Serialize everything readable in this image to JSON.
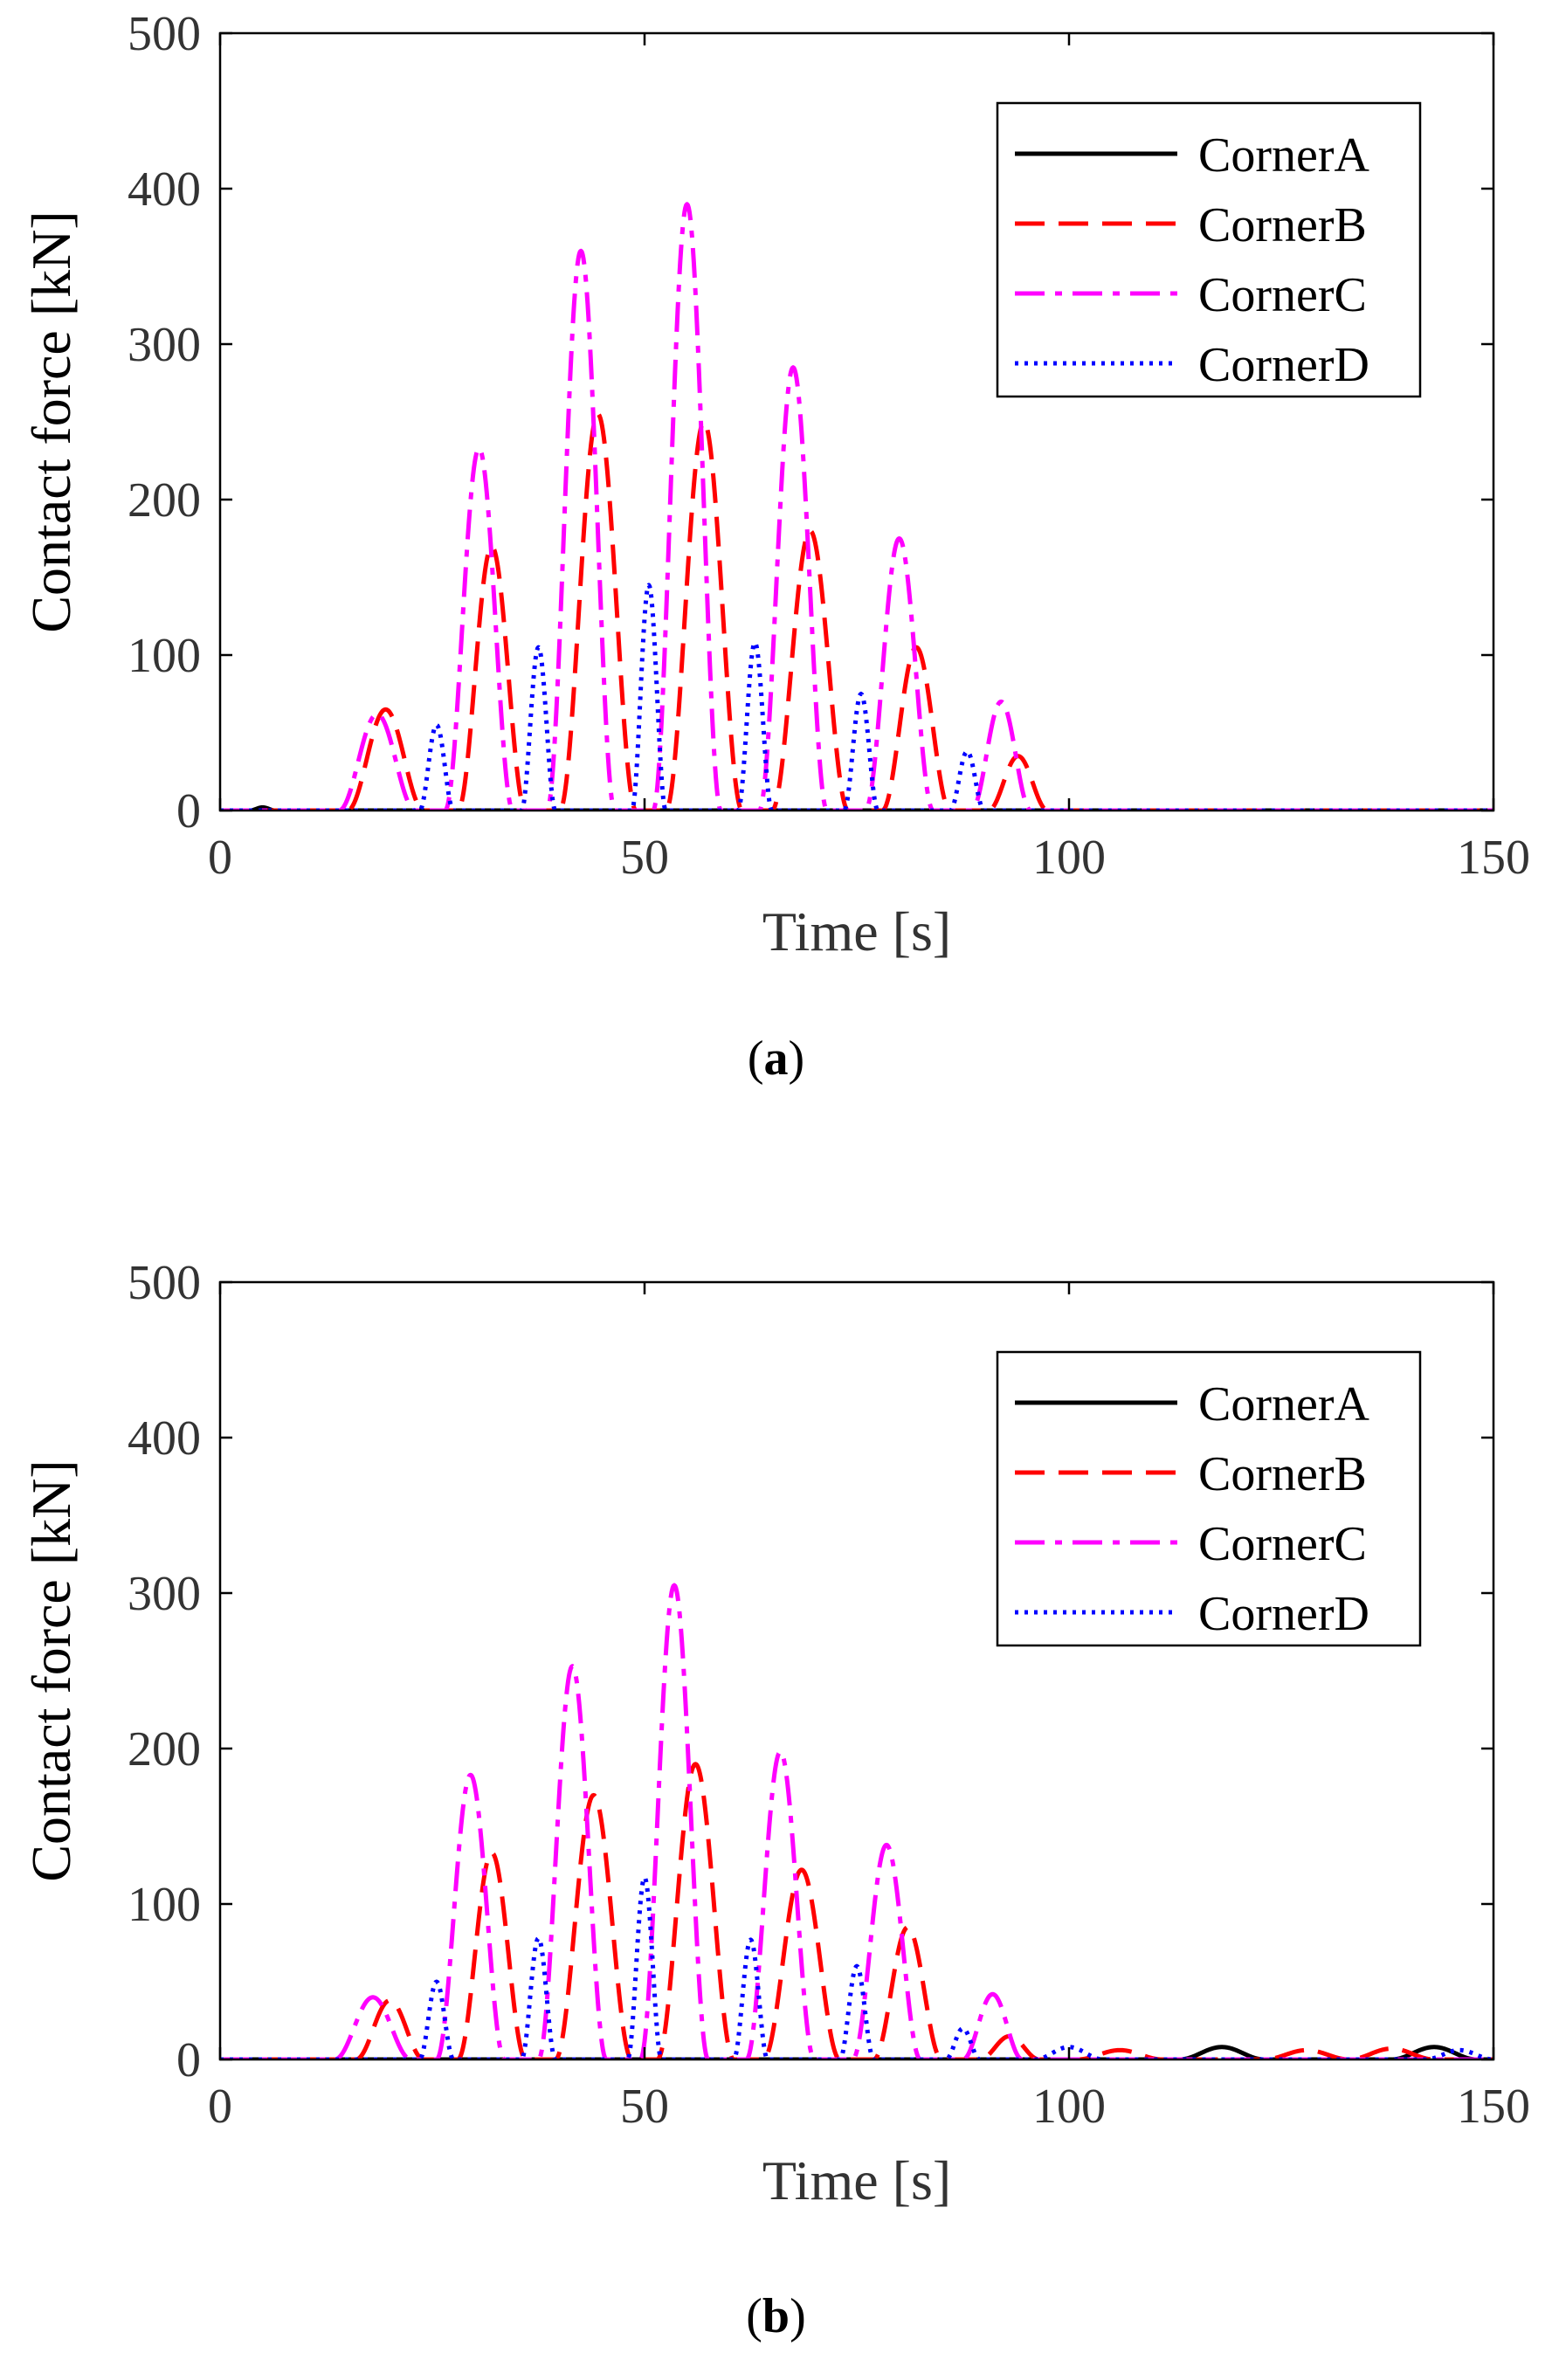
{
  "chart_data": [
    {
      "type": "line",
      "panel_label": "a",
      "xlabel": "Time [s]",
      "ylabel": "Contact force [kN]",
      "xlim": [
        0,
        150
      ],
      "ylim": [
        0,
        500
      ],
      "xticks": [
        0,
        50,
        100,
        150
      ],
      "yticks": [
        0,
        100,
        200,
        300,
        400,
        500
      ],
      "legend_position": "top-right",
      "series": [
        {
          "name": "CornerA",
          "color": "#000000",
          "dash": "solid",
          "pulses": [
            [
              5,
              1.5,
              2
            ]
          ]
        },
        {
          "name": "CornerB",
          "color": "#ff0000",
          "dash": "dashed",
          "pulses": [
            [
              19.5,
              4.5,
              65
            ],
            [
              32,
              4,
              170
            ],
            [
              44.5,
              4.5,
              255
            ],
            [
              57,
              4.5,
              250
            ],
            [
              69.5,
              4.5,
              180
            ],
            [
              82,
              4,
              105
            ],
            [
              94,
              3.5,
              35
            ]
          ]
        },
        {
          "name": "CornerC",
          "color": "#ff00ff",
          "dash": "dashdot",
          "pulses": [
            [
              18.5,
              4.5,
              62
            ],
            [
              30.5,
              4,
              233
            ],
            [
              42.5,
              4,
              360
            ],
            [
              55,
              4,
              390
            ],
            [
              67.5,
              4,
              285
            ],
            [
              80,
              4,
              175
            ],
            [
              92,
              3.5,
              70
            ]
          ]
        },
        {
          "name": "CornerD",
          "color": "#0000ff",
          "dash": "dotted",
          "pulses": [
            [
              25.5,
              2,
              55
            ],
            [
              37.5,
              2,
              105
            ],
            [
              50.5,
              2,
              145
            ],
            [
              63,
              2,
              108
            ],
            [
              75.5,
              2,
              75
            ],
            [
              88,
              2,
              38
            ]
          ]
        }
      ]
    },
    {
      "type": "line",
      "panel_label": "b",
      "xlabel": "Time [s]",
      "ylabel": "Contact force [kN]",
      "xlim": [
        0,
        150
      ],
      "ylim": [
        0,
        500
      ],
      "xticks": [
        0,
        50,
        100,
        150
      ],
      "yticks": [
        0,
        100,
        200,
        300,
        400,
        500
      ],
      "legend_position": "top-right",
      "series": [
        {
          "name": "CornerA",
          "color": "#000000",
          "dash": "solid",
          "pulses": [
            [
              118,
              5,
              8
            ],
            [
              143,
              5,
              8
            ]
          ]
        },
        {
          "name": "CornerB",
          "color": "#ff0000",
          "dash": "dashed",
          "pulses": [
            [
              20,
              4,
              38
            ],
            [
              32,
              4,
              133
            ],
            [
              44,
              4.5,
              170
            ],
            [
              56,
              4.5,
              190
            ],
            [
              68.5,
              4.5,
              122
            ],
            [
              81,
              4,
              85
            ],
            [
              93,
              3.5,
              15
            ],
            [
              106,
              5,
              6
            ],
            [
              128,
              5,
              6
            ],
            [
              138,
              5,
              7
            ]
          ]
        },
        {
          "name": "CornerC",
          "color": "#ff00ff",
          "dash": "dashdot",
          "pulses": [
            [
              18,
              4.5,
              40
            ],
            [
              29.5,
              4,
              183
            ],
            [
              41.5,
              4,
              253
            ],
            [
              53.5,
              4,
              305
            ],
            [
              66,
              4,
              198
            ],
            [
              78.5,
              4,
              138
            ],
            [
              91,
              3.5,
              42
            ]
          ]
        },
        {
          "name": "CornerD",
          "color": "#0000ff",
          "dash": "dotted",
          "pulses": [
            [
              25.5,
              2,
              50
            ],
            [
              37.5,
              2,
              78
            ],
            [
              50,
              2,
              117
            ],
            [
              62.5,
              2,
              77
            ],
            [
              75,
              2,
              60
            ],
            [
              87.5,
              2,
              20
            ],
            [
              100,
              4,
              8
            ],
            [
              146,
              4,
              6
            ]
          ]
        }
      ]
    }
  ]
}
